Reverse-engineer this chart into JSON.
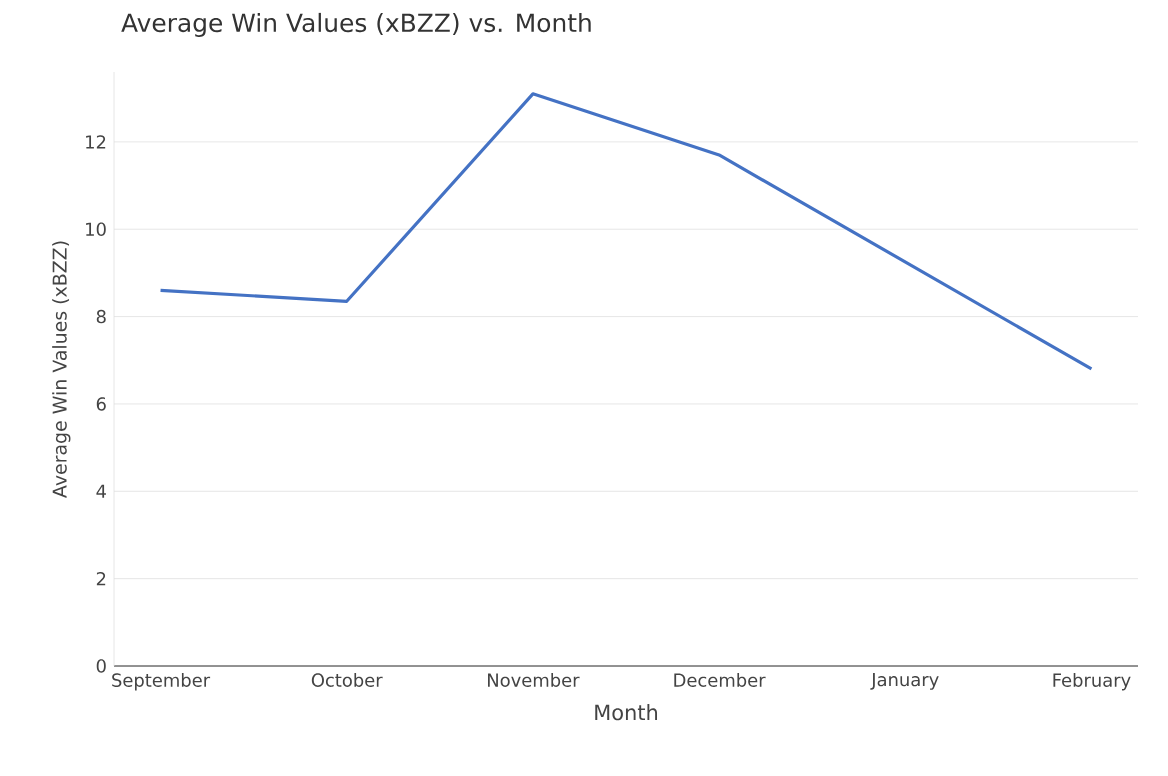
{
  "chart_data": {
    "type": "line",
    "title": "Average Win Values (xBZZ) vs. Month",
    "xlabel": "Month",
    "ylabel": "Average Win Values (xBZZ)",
    "categories": [
      "September",
      "October",
      "November",
      "December",
      "January",
      "February"
    ],
    "values": [
      8.6,
      8.35,
      13.1,
      11.7,
      9.25,
      6.8
    ],
    "color": "#4472c4",
    "ylim": [
      0,
      13.6
    ],
    "yticks": [
      0,
      2,
      4,
      6,
      8,
      10,
      12
    ],
    "grid": "y",
    "marker": "none",
    "line_style": "solid"
  }
}
